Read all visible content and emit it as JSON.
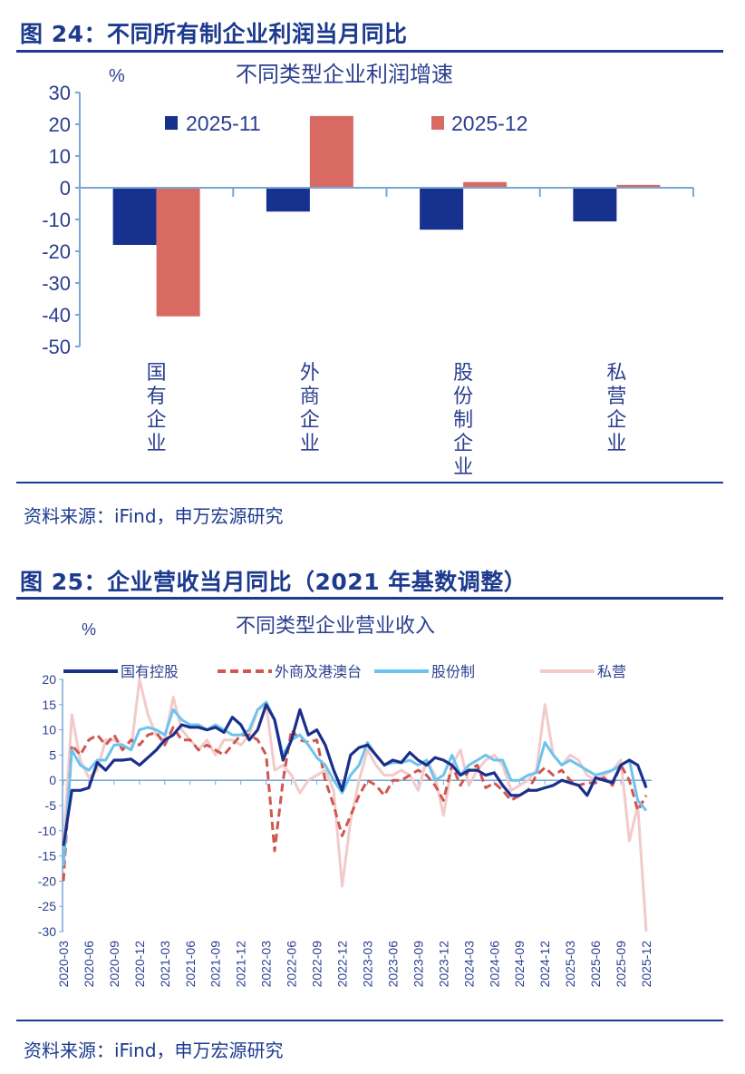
{
  "figures": [
    {
      "title": "图 24：不同所有制企业利润当月同比",
      "source": "资料来源：iFind，申万宏源研究"
    },
    {
      "title": "图 25：企业营收当月同比（2021 年基数调整）",
      "source": "资料来源：iFind，申万宏源研究"
    }
  ],
  "chart_data": [
    {
      "type": "bar",
      "title": "不同类型企业利润增速",
      "ylabel": "%",
      "ylim": [
        -50,
        30
      ],
      "yticks": [
        30,
        20,
        10,
        0,
        -10,
        -20,
        -30,
        -40,
        -50
      ],
      "categories": [
        "国有企业",
        "外商企业",
        "股份制企业",
        "私营企业"
      ],
      "legend_position": "top",
      "series": [
        {
          "name": "2025-11",
          "color": "#17318f",
          "values": [
            -18.0,
            -7.5,
            -13.2,
            -10.6
          ]
        },
        {
          "name": "2025-12",
          "color": "#d96a63",
          "values": [
            -40.5,
            22.6,
            1.8,
            0.9
          ]
        }
      ]
    },
    {
      "type": "line",
      "title": "不同类型企业营业收入",
      "ylabel": "%",
      "ylim": [
        -30,
        20
      ],
      "yticks": [
        20,
        15,
        10,
        5,
        0,
        -5,
        -10,
        -15,
        -20,
        -25,
        -30
      ],
      "x_start": "2020-03",
      "x_end": "2025-12",
      "xticks": [
        "2020-03",
        "2020-06",
        "2020-09",
        "2020-12",
        "2021-03",
        "2021-06",
        "2021-09",
        "2021-12",
        "2022-03",
        "2022-06",
        "2022-09",
        "2022-12",
        "2023-03",
        "2023-06",
        "2023-09",
        "2023-12",
        "2024-03",
        "2024-06",
        "2024-09",
        "2024-12",
        "2025-03",
        "2025-06",
        "2025-09",
        "2025-12"
      ],
      "legend_position": "top",
      "series": [
        {
          "name": "国有控股",
          "color": "#1a2f8a",
          "style": "solid",
          "values": [
            -13,
            -2,
            -2,
            -1.5,
            3.5,
            2,
            4,
            4,
            4.2,
            3,
            4.5,
            6,
            8,
            9,
            11,
            10.5,
            10.5,
            10,
            10.5,
            9.5,
            12.5,
            11,
            8,
            10,
            15,
            12,
            4,
            8,
            14,
            9,
            10,
            7,
            2,
            -2,
            5,
            6.5,
            7,
            5,
            3,
            4,
            3.5,
            5.5,
            4,
            3,
            4.5,
            4,
            3,
            1,
            2,
            2,
            1,
            1.5,
            -1,
            -3,
            -3,
            -2,
            -2,
            -1.5,
            -1,
            0,
            -0.5,
            -1,
            -3,
            0.5,
            0,
            -0.5,
            3,
            4,
            3,
            -1.5
          ]
        },
        {
          "name": "外商及港澳台",
          "color": "#d0574f",
          "style": "dashed",
          "values": [
            -20,
            7,
            5,
            8,
            9,
            7,
            9,
            6,
            8,
            7,
            9,
            9.5,
            7,
            10.5,
            8,
            8,
            6,
            7,
            6,
            5,
            7,
            9,
            9,
            8,
            5,
            -14,
            0,
            10,
            8,
            7.5,
            8,
            0,
            -5,
            -11,
            -7,
            -3,
            0,
            -1,
            -3,
            0,
            0,
            1,
            2,
            1,
            -1,
            -4,
            3,
            -1,
            2,
            3,
            -1.5,
            -0.5,
            -2,
            -4,
            -3,
            -2,
            1,
            2.5,
            1,
            2,
            0,
            -1,
            -0.5,
            -0.5,
            0.5,
            -1,
            3,
            0,
            -6,
            -3
          ]
        },
        {
          "name": "股份制",
          "color": "#6cc4ee",
          "style": "solid",
          "values": [
            -17,
            6,
            3,
            2,
            4,
            4,
            7,
            7,
            6,
            10,
            10.5,
            10,
            9,
            14,
            12,
            11,
            11,
            10,
            11,
            10,
            9,
            9,
            10,
            14,
            15.5,
            12,
            5,
            8,
            9,
            7,
            4.5,
            3,
            0,
            -2.5,
            1,
            3,
            7.5,
            5,
            3,
            3.5,
            3.5,
            4,
            3,
            4,
            0,
            1,
            5,
            1,
            3,
            4,
            5,
            4,
            4,
            0,
            0,
            1,
            1.5,
            7.5,
            5,
            3,
            4,
            3,
            2,
            1,
            1.5,
            2,
            3,
            4,
            -4,
            -6
          ]
        },
        {
          "name": "私营",
          "color": "#f3caca",
          "style": "solid",
          "values": [
            -13,
            13,
            4,
            0.5,
            2,
            8,
            8,
            7,
            6,
            20,
            13,
            9,
            8,
            16.5,
            10,
            8,
            6,
            8,
            5,
            8,
            8,
            7,
            9,
            14,
            15,
            2,
            3,
            1,
            -2.5,
            0,
            1,
            2,
            -2,
            -21,
            -8,
            0,
            6,
            3,
            1,
            1,
            2,
            1,
            -2,
            4,
            1,
            -7,
            3,
            6,
            -1,
            2,
            4,
            5,
            3,
            -2,
            -1,
            0,
            2,
            15,
            5,
            3,
            5,
            4,
            1,
            0,
            1,
            2,
            4,
            -12,
            -5,
            -30
          ]
        }
      ]
    }
  ]
}
